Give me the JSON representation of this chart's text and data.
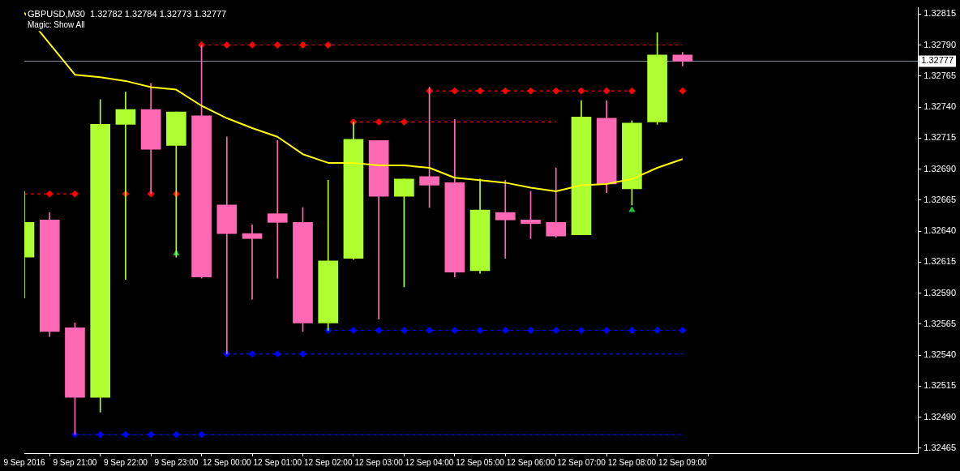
{
  "chart_data": {
    "type": "candlestick",
    "title": "GBPUSD,M30  1.32782 1.32784 1.32773 1.32777",
    "subtitle": "Magic: Show All",
    "categories": [
      "9 Sep 2016",
      null,
      "9 Sep 21:00",
      null,
      "9 Sep 22:00",
      null,
      "9 Sep 23:00",
      null,
      "12 Sep 00:00",
      null,
      "12 Sep 01:00",
      null,
      "12 Sep 02:00",
      null,
      "12 Sep 03:00",
      null,
      "12 Sep 04:00",
      null,
      "12 Sep 05:00",
      null,
      "12 Sep 06:00",
      null,
      "12 Sep 07:00",
      null,
      "12 Sep 08:00",
      null,
      "12 Sep 09:00"
    ],
    "ohlc": [
      [
        1.32619,
        1.32672,
        1.32586,
        1.32647
      ],
      [
        1.32649,
        1.32655,
        1.32555,
        1.32559
      ],
      [
        1.32562,
        1.32566,
        1.32476,
        1.32506
      ],
      [
        1.32506,
        1.32746,
        1.32494,
        1.32726
      ],
      [
        1.32726,
        1.32752,
        1.32601,
        1.32738
      ],
      [
        1.32738,
        1.32759,
        1.3267,
        1.32706
      ],
      [
        1.32709,
        1.32736,
        1.32619,
        1.32736
      ],
      [
        1.32733,
        1.3279,
        1.32602,
        1.32603
      ],
      [
        1.32661,
        1.32716,
        1.32541,
        1.32638
      ],
      [
        1.32638,
        1.32645,
        1.32585,
        1.32634
      ],
      [
        1.32654,
        1.32713,
        1.32602,
        1.32647
      ],
      [
        1.32647,
        1.32659,
        1.32559,
        1.32566
      ],
      [
        1.32566,
        1.32681,
        1.3256,
        1.32616
      ],
      [
        1.32618,
        1.32728,
        1.32617,
        1.32714
      ],
      [
        1.32713,
        1.32713,
        1.32569,
        1.32668
      ],
      [
        1.32668,
        1.32682,
        1.32595,
        1.32682
      ],
      [
        1.32684,
        1.32756,
        1.32659,
        1.32677
      ],
      [
        1.32679,
        1.3273,
        1.32603,
        1.32607
      ],
      [
        1.32608,
        1.32682,
        1.32606,
        1.32657
      ],
      [
        1.32655,
        1.32681,
        1.32618,
        1.32649
      ],
      [
        1.32649,
        1.32672,
        1.32634,
        1.32646
      ],
      [
        1.32647,
        1.32691,
        1.32635,
        1.32636
      ],
      [
        1.32637,
        1.32745,
        1.32637,
        1.32732
      ],
      [
        1.32731,
        1.32745,
        1.32671,
        1.32678
      ],
      [
        1.32674,
        1.32729,
        1.32661,
        1.32727
      ],
      [
        1.32728,
        1.328,
        1.32726,
        1.32782
      ],
      [
        1.32782,
        1.32784,
        1.32773,
        1.32777
      ]
    ],
    "colors": [
      "#adff2f",
      "#ff69b4",
      "#ff69b4",
      "#adff2f",
      "#adff2f",
      "#ff69b4",
      "#adff2f",
      "#ff69b4",
      "#ff69b4",
      "#ff69b4",
      "#ff69b4",
      "#ff69b4",
      "#adff2f",
      "#adff2f",
      "#ff69b4",
      "#adff2f",
      "#ff69b4",
      "#ff69b4",
      "#adff2f",
      "#ff69b4",
      "#ff69b4",
      "#ff69b4",
      "#adff2f",
      "#ff69b4",
      "#adff2f",
      "#adff2f",
      "#ff69b4"
    ],
    "series": [
      {
        "type": "line",
        "color": "#ffff00",
        "marker": "none",
        "values": [
          1.32816,
          1.32791,
          1.32766,
          1.32764,
          1.32761,
          1.32756,
          1.32754,
          1.32741,
          1.32731,
          1.32723,
          1.32716,
          1.32702,
          1.32695,
          1.32695,
          1.32693,
          1.32693,
          1.32691,
          1.32683,
          1.32681,
          1.32679,
          1.32675,
          1.32672,
          1.32677,
          1.32678,
          1.32682,
          1.32691,
          1.32698
        ]
      },
      {
        "type": "line",
        "color": "#ff0000",
        "marker": "none",
        "line_style": "dashed",
        "values": [
          1.3267,
          1.3267,
          1.3267,
          null,
          null,
          null,
          null,
          null,
          null,
          null,
          null,
          null,
          null,
          null,
          null,
          null,
          null,
          null,
          null,
          null,
          null,
          null,
          null,
          null,
          null,
          null,
          null
        ]
      },
      {
        "type": "line",
        "color": "#ff0000",
        "marker": "none",
        "line_style": "dashed",
        "values": [
          null,
          null,
          null,
          null,
          null,
          null,
          null,
          1.3279,
          1.3279,
          1.3279,
          1.3279,
          1.3279,
          1.3279,
          1.3279,
          1.3279,
          1.3279,
          1.3279,
          1.3279,
          1.3279,
          1.3279,
          1.3279,
          1.3279,
          1.3279,
          1.3279,
          1.3279,
          1.3279,
          1.3279
        ]
      },
      {
        "type": "line",
        "color": "#ff0000",
        "marker": "none",
        "line_style": "dashed",
        "values": [
          null,
          null,
          null,
          null,
          null,
          null,
          null,
          null,
          null,
          null,
          null,
          null,
          null,
          1.32728,
          1.32728,
          1.32728,
          1.32728,
          1.32728,
          1.32728,
          1.32728,
          1.32728,
          1.32728,
          null,
          null,
          null,
          null,
          null
        ]
      },
      {
        "type": "line",
        "color": "#ff0000",
        "marker": "none",
        "line_style": "dashed",
        "values": [
          null,
          null,
          null,
          null,
          null,
          null,
          null,
          null,
          null,
          null,
          null,
          null,
          null,
          null,
          null,
          null,
          1.32753,
          1.32753,
          1.32753,
          1.32753,
          1.32753,
          1.32753,
          1.32753,
          1.32753,
          1.32753,
          null,
          null
        ]
      },
      {
        "type": "line",
        "color": "#0000ff",
        "marker": "none",
        "line_style": "dashed",
        "values": [
          null,
          null,
          1.32476,
          1.32476,
          1.32476,
          1.32476,
          1.32476,
          1.32476,
          1.32476,
          1.32476,
          1.32476,
          1.32476,
          1.32476,
          1.32476,
          1.32476,
          1.32476,
          1.32476,
          1.32476,
          1.32476,
          1.32476,
          1.32476,
          1.32476,
          1.32476,
          1.32476,
          1.32476,
          1.32476,
          1.32476
        ]
      },
      {
        "type": "line",
        "color": "#0000ff",
        "marker": "none",
        "line_style": "dashed",
        "values": [
          null,
          null,
          null,
          null,
          null,
          null,
          null,
          null,
          1.32541,
          1.32541,
          1.32541,
          1.32541,
          1.32541,
          1.32541,
          1.32541,
          1.32541,
          1.32541,
          1.32541,
          1.32541,
          1.32541,
          1.32541,
          1.32541,
          1.32541,
          1.32541,
          1.32541,
          1.32541,
          1.32541
        ]
      },
      {
        "type": "line",
        "color": "#0000ff",
        "marker": "none",
        "line_style": "dashed",
        "values": [
          null,
          null,
          null,
          null,
          null,
          null,
          null,
          null,
          null,
          null,
          null,
          null,
          1.3256,
          1.3256,
          1.3256,
          1.3256,
          1.3256,
          1.3256,
          1.3256,
          1.3256,
          1.3256,
          1.3256,
          1.3256,
          1.3256,
          1.3256,
          1.3256,
          1.3256
        ]
      },
      {
        "type": "scatter",
        "color": "#ff0000",
        "marker": "diamond",
        "values": [
          null,
          1.3267,
          1.3267,
          null,
          1.3267,
          1.3267,
          1.3267,
          1.3279,
          1.3279,
          1.3279,
          1.3279,
          1.3279,
          1.3279,
          1.32728,
          1.32728,
          1.32728,
          1.32753,
          1.32753,
          1.32753,
          1.32753,
          1.32753,
          1.32753,
          1.32753,
          1.32753,
          1.32753,
          null,
          1.32753
        ]
      },
      {
        "type": "scatter",
        "color": "#0000ff",
        "marker": "diamond",
        "values": [
          null,
          null,
          1.32476,
          1.32476,
          1.32476,
          1.32476,
          1.32476,
          1.32476,
          1.32541,
          1.32541,
          1.32541,
          1.32541,
          1.3256,
          1.3256,
          1.3256,
          1.3256,
          1.3256,
          1.3256,
          1.3256,
          1.3256,
          1.3256,
          1.3256,
          1.3256,
          1.3256,
          1.3256,
          1.3256,
          1.3256
        ]
      },
      {
        "type": "scatter",
        "color": "#22bb44",
        "marker": "triangle",
        "values": [
          null,
          null,
          null,
          null,
          null,
          null,
          1.32622,
          null,
          null,
          null,
          null,
          null,
          null,
          null,
          null,
          null,
          null,
          null,
          null,
          null,
          null,
          null,
          null,
          null,
          1.32657,
          null,
          null
        ]
      }
    ],
    "ylim": [
      1.32461,
      1.3282
    ],
    "yticks": [
      {
        "value": 1.32465,
        "label": "1.32465"
      },
      {
        "value": 1.3249,
        "label": "1.32490"
      },
      {
        "value": 1.32515,
        "label": "1.32515"
      },
      {
        "value": 1.3254,
        "label": "1.32540"
      },
      {
        "value": 1.32565,
        "label": "1.32565"
      },
      {
        "value": 1.3259,
        "label": "1.32590"
      },
      {
        "value": 1.32615,
        "label": "1.32615"
      },
      {
        "value": 1.3264,
        "label": "1.32640"
      },
      {
        "value": 1.32665,
        "label": "1.32665"
      },
      {
        "value": 1.3269,
        "label": "1.32690"
      },
      {
        "value": 1.32715,
        "label": "1.32715"
      },
      {
        "value": 1.3274,
        "label": "1.32740"
      },
      {
        "value": 1.32765,
        "label": "1.32765"
      },
      {
        "value": 1.3279,
        "label": "1.32790"
      },
      {
        "value": 1.32815,
        "label": "1.32815"
      }
    ],
    "ref_lines": [
      {
        "axis": "y",
        "value": 1.32777,
        "label": "1.32777",
        "color": "#8594a4"
      }
    ],
    "legend": false
  }
}
